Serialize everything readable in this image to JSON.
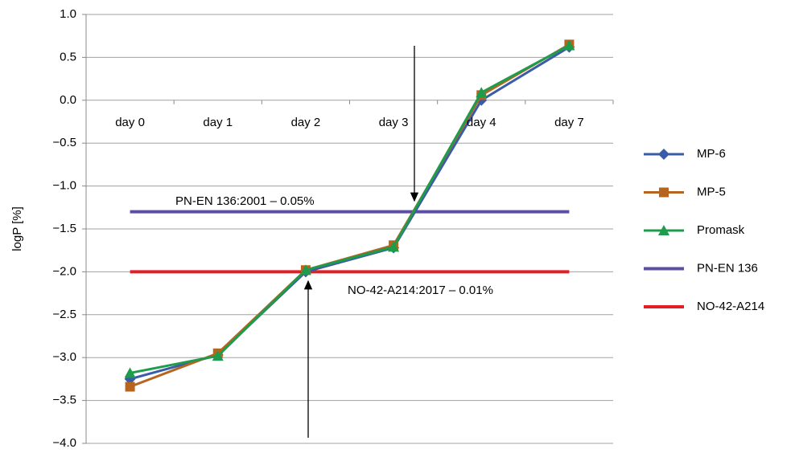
{
  "chart_data": {
    "type": "line",
    "ylabel": "logP [%]",
    "categories": [
      "day 0",
      "day 1",
      "day 2",
      "day 3",
      "day 4",
      "day 7"
    ],
    "series": [
      {
        "name": "MP-6",
        "color": "#3a5ba8",
        "marker": "diamond",
        "values": [
          -3.25,
          -2.97,
          -2.0,
          -1.72,
          0.0,
          0.62
        ]
      },
      {
        "name": "MP-5",
        "color": "#b5651d",
        "marker": "square",
        "values": [
          -3.34,
          -2.95,
          -1.98,
          -1.69,
          0.06,
          0.65
        ]
      },
      {
        "name": "Promask",
        "color": "#1e9c4b",
        "marker": "triangle",
        "values": [
          -3.18,
          -2.98,
          -1.98,
          -1.71,
          0.09,
          0.64
        ]
      },
      {
        "name": "PN-EN 136",
        "color": "#5b4ea3",
        "values": [
          -1.3,
          -1.3,
          -1.3,
          -1.3,
          -1.3,
          -1.3
        ]
      },
      {
        "name": "NO-42-A214",
        "color": "#e31e24",
        "values": [
          -2.0,
          -2.0,
          -2.0,
          -2.0,
          -2.0,
          -2.0
        ]
      }
    ],
    "annotations": [
      "PN-EN 136:2001 – 0.05%",
      "NO-42-A214:2017 – 0.01%"
    ],
    "ylim": [
      -4.0,
      1.0
    ],
    "yticks": [
      {
        "value": 1.0,
        "label": "1.0"
      },
      {
        "value": 0.5,
        "label": "0.5"
      },
      {
        "value": 0.0,
        "label": "0.0"
      },
      {
        "value": -0.5,
        "label": "−0.5"
      },
      {
        "value": -1.0,
        "label": "−1.0"
      },
      {
        "value": -1.5,
        "label": "−1.5"
      },
      {
        "value": -2.0,
        "label": "−2.0"
      },
      {
        "value": -2.5,
        "label": "−2.5"
      },
      {
        "value": -3.0,
        "label": "−3.0"
      },
      {
        "value": -3.5,
        "label": "−3.5"
      },
      {
        "value": -4.0,
        "label": "−4.0"
      }
    ],
    "grid": true,
    "legend": "right"
  }
}
